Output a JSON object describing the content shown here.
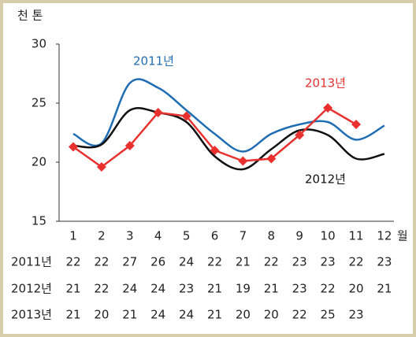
{
  "chart_data": {
    "type": "line",
    "y_unit": "천 톤",
    "x_unit": "월",
    "categories": [
      "1",
      "2",
      "3",
      "4",
      "5",
      "6",
      "7",
      "8",
      "9",
      "10",
      "11",
      "12"
    ],
    "ylim": [
      15,
      30
    ],
    "yticks": [
      15,
      20,
      25,
      30
    ],
    "series": [
      {
        "name": "2011년",
        "color": "#1f6db3",
        "smooth": true,
        "markers": false,
        "values": [
          22.4,
          21.6,
          26.7,
          26.3,
          24.4,
          22.4,
          20.9,
          22.4,
          23.2,
          23.4,
          21.9,
          23.1
        ],
        "value_labels": [
          "22",
          "22",
          "27",
          "26",
          "24",
          "22",
          "21",
          "22",
          "23",
          "23",
          "22",
          "23"
        ]
      },
      {
        "name": "2012년",
        "color": "#111111",
        "smooth": true,
        "markers": false,
        "values": [
          21.4,
          21.5,
          24.4,
          24.2,
          23.4,
          20.5,
          19.4,
          21.1,
          22.7,
          22.3,
          20.3,
          20.7
        ],
        "value_labels": [
          "21",
          "22",
          "24",
          "24",
          "23",
          "21",
          "19",
          "21",
          "23",
          "22",
          "20",
          "21"
        ]
      },
      {
        "name": "2013년",
        "color": "#e8302e",
        "smooth": false,
        "markers": true,
        "values": [
          21.3,
          19.6,
          21.4,
          24.2,
          23.9,
          21.0,
          20.1,
          20.3,
          22.3,
          24.6,
          23.2,
          null
        ],
        "value_labels": [
          "21",
          "20",
          "21",
          "24",
          "24",
          "21",
          "20",
          "20",
          "22",
          "25",
          "23",
          null
        ]
      }
    ]
  }
}
